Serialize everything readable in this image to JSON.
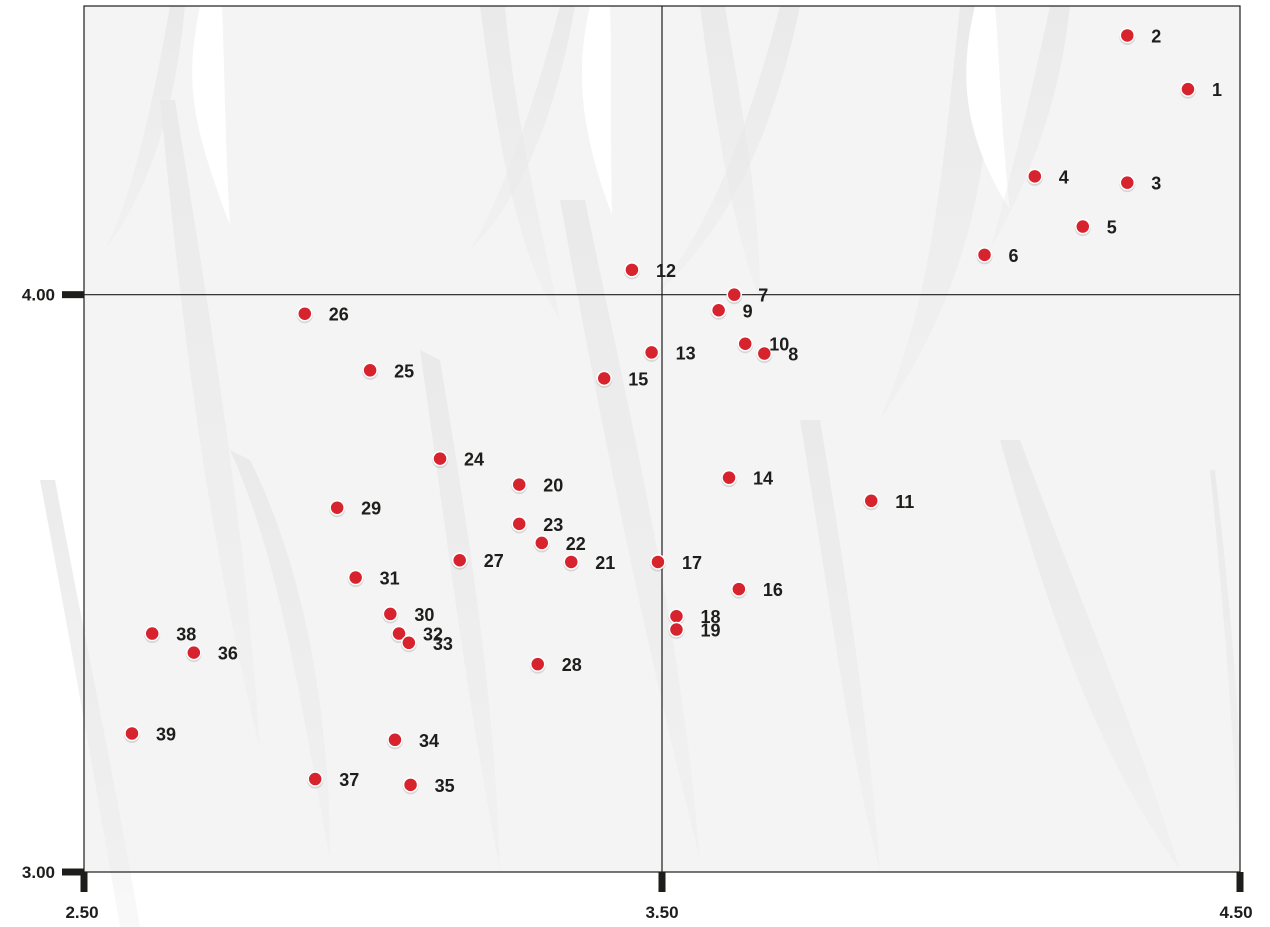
{
  "chart_data": {
    "type": "scatter",
    "title": "",
    "xlabel": "",
    "ylabel": "",
    "xlim": [
      2.5,
      4.5
    ],
    "ylim": [
      3.0,
      4.5
    ],
    "x_divider": 3.5,
    "y_divider": 4.0,
    "x_ticks": [
      {
        "value": 2.5,
        "label": "2.50"
      },
      {
        "value": 3.5,
        "label": "3.50"
      },
      {
        "value": 4.5,
        "label": "4.50"
      }
    ],
    "y_ticks": [
      {
        "value": 3.0,
        "label": "3.00"
      },
      {
        "value": 4.0,
        "label": "4.00"
      }
    ],
    "grid": false,
    "point_color": "#d7232e",
    "point_outline_color": "#ffffff",
    "background_color": "#f4f4f4",
    "frame_color": "#1d1d1b",
    "label_color": "#1d1d1b",
    "points": [
      {
        "label": "1",
        "x": 4.41,
        "y": 4.356
      },
      {
        "label": "2",
        "x": 4.305,
        "y": 4.449
      },
      {
        "label": "3",
        "x": 4.305,
        "y": 4.194
      },
      {
        "label": "4",
        "x": 4.145,
        "y": 4.205
      },
      {
        "label": "5",
        "x": 4.228,
        "y": 4.118
      },
      {
        "label": "6",
        "x": 4.058,
        "y": 4.069
      },
      {
        "label": "7",
        "x": 3.625,
        "y": 4.0
      },
      {
        "label": "8",
        "x": 3.677,
        "y": 3.898
      },
      {
        "label": "9",
        "x": 3.598,
        "y": 3.973
      },
      {
        "label": "10",
        "x": 3.644,
        "y": 3.915
      },
      {
        "label": "11",
        "x": 3.862,
        "y": 3.643
      },
      {
        "label": "12",
        "x": 3.448,
        "y": 4.043
      },
      {
        "label": "13",
        "x": 3.482,
        "y": 3.9
      },
      {
        "label": "14",
        "x": 3.616,
        "y": 3.683
      },
      {
        "label": "15",
        "x": 3.4,
        "y": 3.855
      },
      {
        "label": "16",
        "x": 3.633,
        "y": 3.49
      },
      {
        "label": "17",
        "x": 3.493,
        "y": 3.537
      },
      {
        "label": "18",
        "x": 3.525,
        "y": 3.443
      },
      {
        "label": "19",
        "x": 3.525,
        "y": 3.42
      },
      {
        "label": "20",
        "x": 3.253,
        "y": 3.671
      },
      {
        "label": "21",
        "x": 3.343,
        "y": 3.537
      },
      {
        "label": "22",
        "x": 3.292,
        "y": 3.57
      },
      {
        "label": "23",
        "x": 3.253,
        "y": 3.603
      },
      {
        "label": "24",
        "x": 3.116,
        "y": 3.716
      },
      {
        "label": "25",
        "x": 2.995,
        "y": 3.869
      },
      {
        "label": "26",
        "x": 2.882,
        "y": 3.967
      },
      {
        "label": "27",
        "x": 3.15,
        "y": 3.54
      },
      {
        "label": "28",
        "x": 3.285,
        "y": 3.36
      },
      {
        "label": "29",
        "x": 2.938,
        "y": 3.631
      },
      {
        "label": "30",
        "x": 3.03,
        "y": 3.447
      },
      {
        "label": "31",
        "x": 2.97,
        "y": 3.51
      },
      {
        "label": "32",
        "x": 3.045,
        "y": 3.413
      },
      {
        "label": "33",
        "x": 3.062,
        "y": 3.397
      },
      {
        "label": "34",
        "x": 3.038,
        "y": 3.229
      },
      {
        "label": "35",
        "x": 3.065,
        "y": 3.151
      },
      {
        "label": "36",
        "x": 2.69,
        "y": 3.38
      },
      {
        "label": "37",
        "x": 2.9,
        "y": 3.161
      },
      {
        "label": "38",
        "x": 2.618,
        "y": 3.413
      },
      {
        "label": "39",
        "x": 2.583,
        "y": 3.24
      }
    ]
  }
}
